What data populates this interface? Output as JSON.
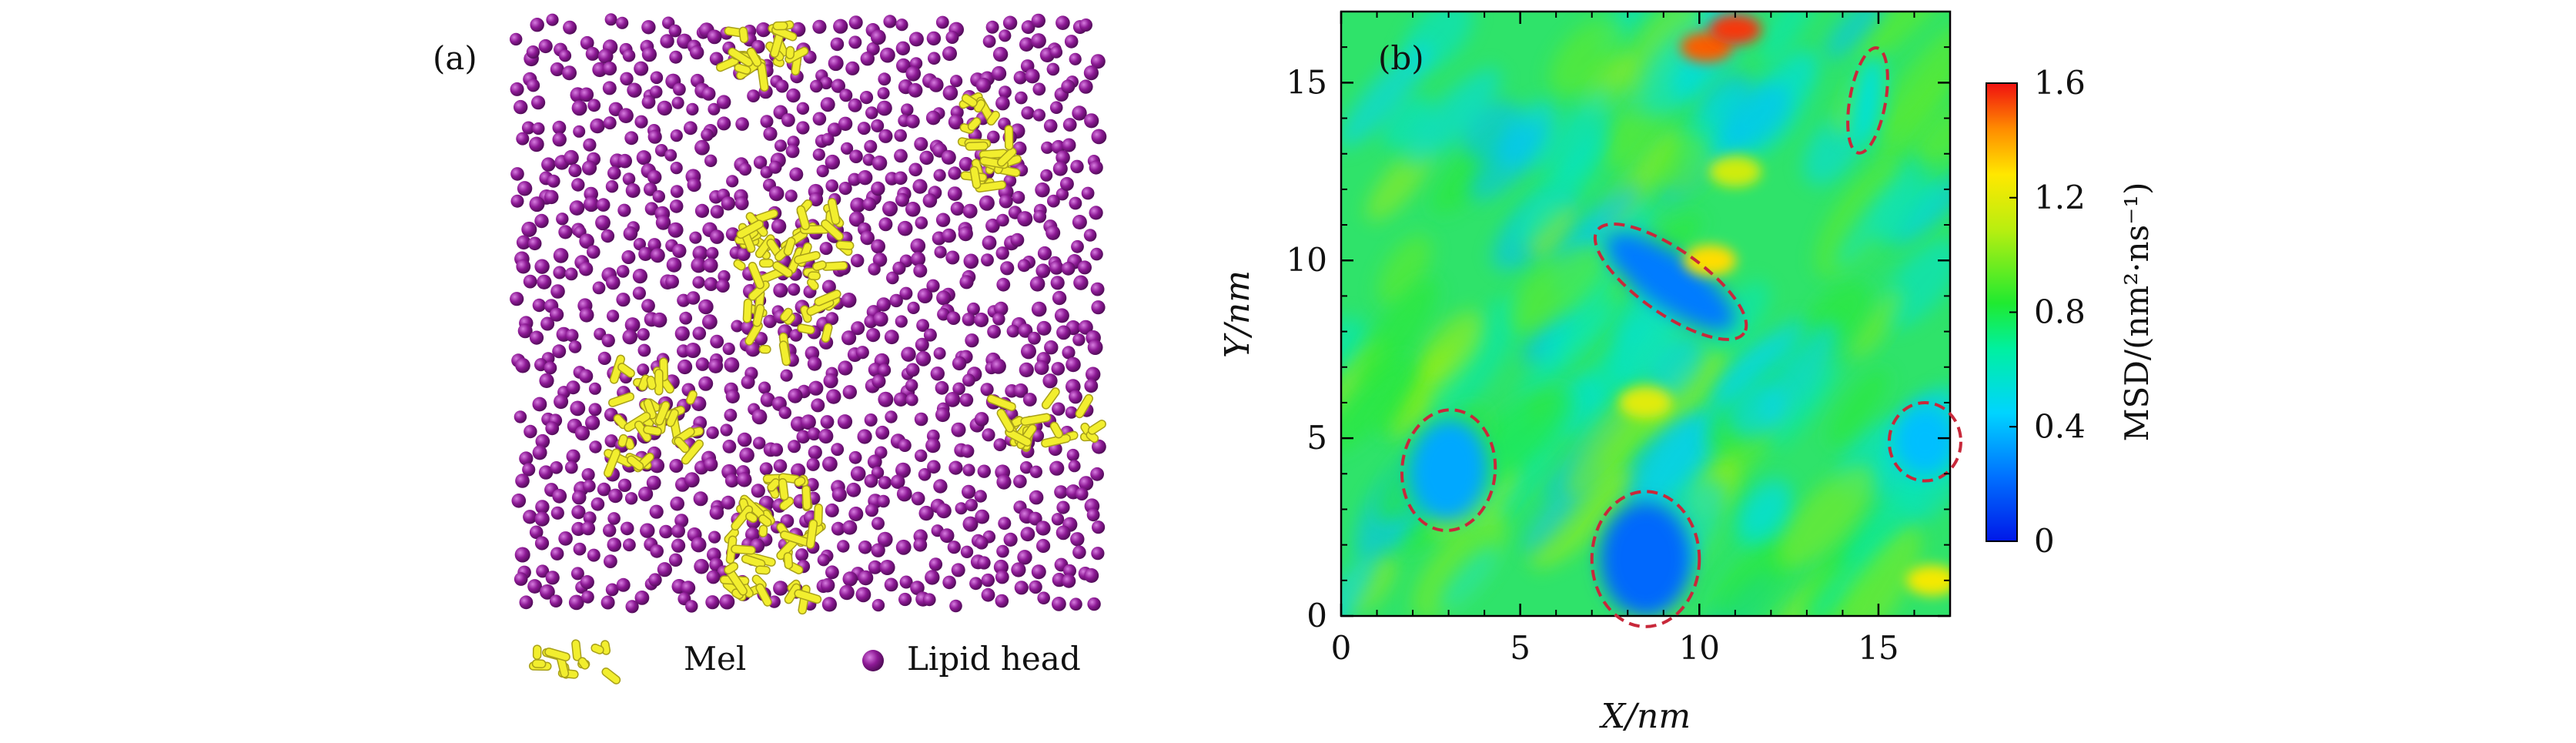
{
  "panel_a": {
    "label": "(a)",
    "legend": {
      "mel": "Mel",
      "lipid": "Lipid head"
    },
    "colors": {
      "lipid": "#8e1a96",
      "mel": "#f2ee2e"
    }
  },
  "panel_b": {
    "label": "(b)",
    "chart_data": {
      "type": "heatmap",
      "title": "",
      "xlabel": "X/nm",
      "ylabel": "Y/nm",
      "xlim": [
        0,
        17
      ],
      "ylim": [
        0,
        17
      ],
      "xticks": [
        0,
        5,
        10,
        15
      ],
      "yticks": [
        0,
        5,
        10,
        15
      ],
      "xtick_labels": [
        "0",
        "5",
        "10",
        "15"
      ],
      "ytick_labels": [
        "0",
        "5",
        "10",
        "15"
      ],
      "colorbar": {
        "label": "MSD/(nm²·ns⁻¹)",
        "range": [
          0,
          1.6
        ],
        "ticks": [
          0,
          0.4,
          0.8,
          1.2,
          1.6
        ],
        "tick_labels": [
          "0",
          "0.4",
          "0.8",
          "1.2",
          "1.6"
        ]
      },
      "background_msd": 0.75,
      "low_msd_regions": [
        {
          "cx": 3.0,
          "cy": 4.1,
          "rx": 1.3,
          "ry": 1.7,
          "angle": 5,
          "msd": 0.35
        },
        {
          "cx": 8.5,
          "cy": 1.6,
          "rx": 1.5,
          "ry": 1.9,
          "angle": 0,
          "msd": 0.2
        },
        {
          "cx": 9.2,
          "cy": 9.4,
          "rx": 2.5,
          "ry": 0.9,
          "angle": 35,
          "msd": 0.25
        },
        {
          "cx": 14.7,
          "cy": 14.5,
          "rx": 0.5,
          "ry": 1.5,
          "angle": 10,
          "msd": 0.55
        },
        {
          "cx": 16.3,
          "cy": 4.9,
          "rx": 1.0,
          "ry": 1.1,
          "angle": 0,
          "msd": 0.4
        }
      ],
      "high_msd_spots": [
        {
          "x": 10.2,
          "y": 16.0,
          "msd": 1.5
        },
        {
          "x": 11.0,
          "y": 16.5,
          "msd": 1.55
        },
        {
          "x": 8.5,
          "y": 6.0,
          "msd": 1.2
        },
        {
          "x": 16.5,
          "y": 1.0,
          "msd": 1.25
        },
        {
          "x": 11.0,
          "y": 12.5,
          "msd": 1.15
        },
        {
          "x": 10.3,
          "y": 10.0,
          "msd": 1.3
        }
      ]
    }
  }
}
